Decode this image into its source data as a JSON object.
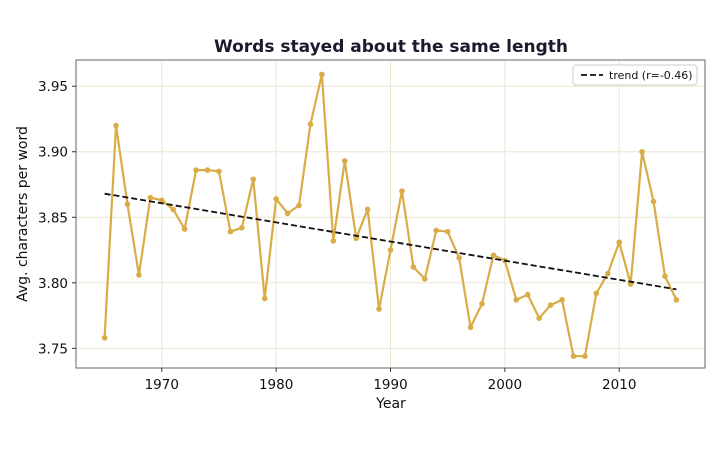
{
  "chart_data": {
    "type": "line",
    "title": "Words stayed about the same length",
    "xlabel": "Year",
    "ylabel": "Avg. characters per word",
    "xlim": [
      1962.5,
      2017.5
    ],
    "ylim": [
      3.735,
      3.97
    ],
    "x_ticks": [
      1970,
      1980,
      1990,
      2000,
      2010
    ],
    "y_ticks": [
      3.75,
      3.8,
      3.85,
      3.9,
      3.95
    ],
    "x_tick_labels": [
      "1970",
      "1980",
      "1990",
      "2000",
      "2010"
    ],
    "y_tick_labels": [
      "3.75",
      "3.80",
      "3.85",
      "3.90",
      "3.95"
    ],
    "grid": true,
    "legend_position": "top-right",
    "colors": {
      "series": "#d9ac47",
      "trend": "#111111",
      "grid": "#ece6d3",
      "axes": "#666666"
    },
    "series": [
      {
        "x": [
          1965,
          1966,
          1967,
          1968,
          1969,
          1970,
          1971,
          1972,
          1973,
          1974,
          1975,
          1976,
          1977,
          1978,
          1979,
          1980,
          1981,
          1982,
          1983,
          1984,
          1985,
          1986,
          1987,
          1988,
          1989,
          1990,
          1991,
          1992,
          1993,
          1994,
          1995,
          1996,
          1997,
          1998,
          1999,
          2000,
          2001,
          2002,
          2003,
          2004,
          2005,
          2006,
          2007,
          2008,
          2009,
          2010,
          2011,
          2012,
          2013,
          2014,
          2015
        ],
        "values": [
          3.758,
          3.92,
          3.86,
          3.806,
          3.865,
          3.863,
          3.856,
          3.841,
          3.886,
          3.886,
          3.885,
          3.839,
          3.842,
          3.879,
          3.788,
          3.864,
          3.853,
          3.859,
          3.921,
          3.959,
          3.832,
          3.893,
          3.834,
          3.856,
          3.78,
          3.825,
          3.87,
          3.812,
          3.803,
          3.84,
          3.839,
          3.819,
          3.766,
          3.784,
          3.821,
          3.817,
          3.787,
          3.791,
          3.773,
          3.783,
          3.787,
          3.744,
          3.744,
          3.792,
          3.807,
          3.831,
          3.799,
          3.9,
          3.862,
          3.805,
          3.787
        ]
      }
    ],
    "trend": {
      "name": "trend (r=-0.46)",
      "x": [
        1965,
        2015
      ],
      "values": [
        3.868,
        3.795
      ]
    }
  }
}
